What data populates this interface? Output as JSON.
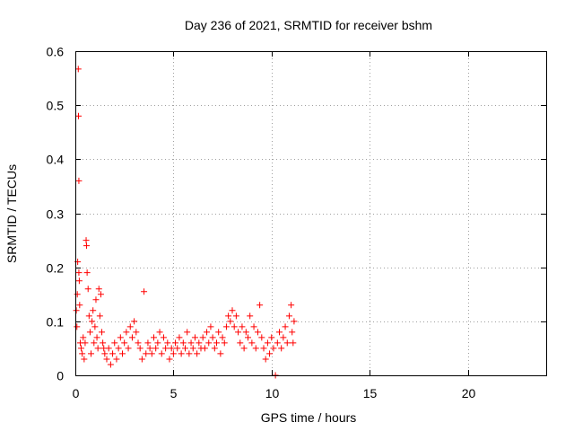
{
  "chart_data": {
    "type": "scatter",
    "title": "Day 236 of 2021, SRMTID for receiver bshm",
    "xlabel": "GPS time / hours",
    "ylabel": "SRMTID / TECUs",
    "xlim": [
      0,
      24
    ],
    "ylim": [
      0,
      0.6
    ],
    "x_ticks": [
      0,
      5,
      10,
      15,
      20
    ],
    "x_tick_labels": [
      "0",
      "5",
      "10",
      "15",
      "20"
    ],
    "y_ticks": [
      0,
      0.1,
      0.2,
      0.3,
      0.4,
      0.5,
      0.6
    ],
    "y_tick_labels": [
      "0",
      "0.1",
      "0.2",
      "0.3",
      "0.4",
      "0.5",
      "0.6"
    ],
    "grid": true,
    "marker": "plus",
    "marker_color": "#ff0000",
    "series": [
      {
        "points": [
          [
            0.05,
            0.12
          ],
          [
            0.08,
            0.09
          ],
          [
            0.1,
            0.15
          ],
          [
            0.12,
            0.21
          ],
          [
            0.15,
            0.567
          ],
          [
            0.16,
            0.48
          ],
          [
            0.18,
            0.36
          ],
          [
            0.18,
            0.19
          ],
          [
            0.2,
            0.175
          ],
          [
            0.22,
            0.13
          ],
          [
            0.25,
            0.06
          ],
          [
            0.3,
            0.05
          ],
          [
            0.35,
            0.04
          ],
          [
            0.4,
            0.07
          ],
          [
            0.45,
            0.03
          ],
          [
            0.5,
            0.06
          ],
          [
            0.55,
            0.25
          ],
          [
            0.57,
            0.24
          ],
          [
            0.6,
            0.19
          ],
          [
            0.65,
            0.16
          ],
          [
            0.7,
            0.11
          ],
          [
            0.75,
            0.08
          ],
          [
            0.8,
            0.04
          ],
          [
            0.85,
            0.1
          ],
          [
            0.9,
            0.12
          ],
          [
            0.95,
            0.06
          ],
          [
            1.0,
            0.09
          ],
          [
            1.05,
            0.14
          ],
          [
            1.1,
            0.07
          ],
          [
            1.15,
            0.05
          ],
          [
            1.2,
            0.16
          ],
          [
            1.25,
            0.11
          ],
          [
            1.3,
            0.15
          ],
          [
            1.35,
            0.08
          ],
          [
            1.4,
            0.06
          ],
          [
            1.45,
            0.05
          ],
          [
            1.5,
            0.04
          ],
          [
            1.6,
            0.03
          ],
          [
            1.7,
            0.05
          ],
          [
            1.8,
            0.02
          ],
          [
            1.9,
            0.04
          ],
          [
            2.0,
            0.06
          ],
          [
            2.1,
            0.03
          ],
          [
            2.2,
            0.05
          ],
          [
            2.3,
            0.07
          ],
          [
            2.4,
            0.04
          ],
          [
            2.5,
            0.06
          ],
          [
            2.6,
            0.08
          ],
          [
            2.7,
            0.05
          ],
          [
            2.8,
            0.09
          ],
          [
            2.9,
            0.07
          ],
          [
            3.0,
            0.1
          ],
          [
            3.1,
            0.08
          ],
          [
            3.2,
            0.06
          ],
          [
            3.3,
            0.05
          ],
          [
            3.4,
            0.03
          ],
          [
            3.5,
            0.155
          ],
          [
            3.6,
            0.04
          ],
          [
            3.7,
            0.06
          ],
          [
            3.8,
            0.05
          ],
          [
            3.9,
            0.04
          ],
          [
            4.0,
            0.07
          ],
          [
            4.1,
            0.05
          ],
          [
            4.2,
            0.06
          ],
          [
            4.3,
            0.08
          ],
          [
            4.4,
            0.04
          ],
          [
            4.5,
            0.07
          ],
          [
            4.6,
            0.05
          ],
          [
            4.7,
            0.06
          ],
          [
            4.8,
            0.03
          ],
          [
            4.9,
            0.05
          ],
          [
            5.0,
            0.04
          ],
          [
            5.1,
            0.06
          ],
          [
            5.2,
            0.05
          ],
          [
            5.3,
            0.07
          ],
          [
            5.4,
            0.04
          ],
          [
            5.5,
            0.06
          ],
          [
            5.6,
            0.05
          ],
          [
            5.7,
            0.08
          ],
          [
            5.8,
            0.04
          ],
          [
            5.9,
            0.06
          ],
          [
            6.0,
            0.05
          ],
          [
            6.1,
            0.07
          ],
          [
            6.2,
            0.04
          ],
          [
            6.3,
            0.06
          ],
          [
            6.4,
            0.05
          ],
          [
            6.5,
            0.07
          ],
          [
            6.6,
            0.05
          ],
          [
            6.7,
            0.08
          ],
          [
            6.8,
            0.06
          ],
          [
            6.9,
            0.09
          ],
          [
            7.0,
            0.07
          ],
          [
            7.1,
            0.05
          ],
          [
            7.2,
            0.06
          ],
          [
            7.3,
            0.08
          ],
          [
            7.4,
            0.04
          ],
          [
            7.5,
            0.07
          ],
          [
            7.6,
            0.06
          ],
          [
            7.7,
            0.09
          ],
          [
            7.8,
            0.11
          ],
          [
            7.9,
            0.1
          ],
          [
            8.0,
            0.12
          ],
          [
            8.1,
            0.09
          ],
          [
            8.2,
            0.11
          ],
          [
            8.3,
            0.08
          ],
          [
            8.4,
            0.06
          ],
          [
            8.5,
            0.09
          ],
          [
            8.6,
            0.05
          ],
          [
            8.7,
            0.08
          ],
          [
            8.8,
            0.07
          ],
          [
            8.9,
            0.11
          ],
          [
            9.0,
            0.06
          ],
          [
            9.1,
            0.09
          ],
          [
            9.2,
            0.05
          ],
          [
            9.3,
            0.08
          ],
          [
            9.4,
            0.13
          ],
          [
            9.5,
            0.07
          ],
          [
            9.6,
            0.05
          ],
          [
            9.7,
            0.03
          ],
          [
            9.8,
            0.06
          ],
          [
            9.9,
            0.04
          ],
          [
            10.0,
            0.07
          ],
          [
            10.1,
            0.05
          ],
          [
            10.2,
            0.0
          ],
          [
            10.3,
            0.06
          ],
          [
            10.4,
            0.08
          ],
          [
            10.5,
            0.05
          ],
          [
            10.6,
            0.07
          ],
          [
            10.7,
            0.09
          ],
          [
            10.8,
            0.06
          ],
          [
            10.9,
            0.11
          ],
          [
            11.0,
            0.13
          ],
          [
            11.05,
            0.08
          ],
          [
            11.1,
            0.06
          ],
          [
            11.15,
            0.1
          ]
        ]
      }
    ]
  }
}
